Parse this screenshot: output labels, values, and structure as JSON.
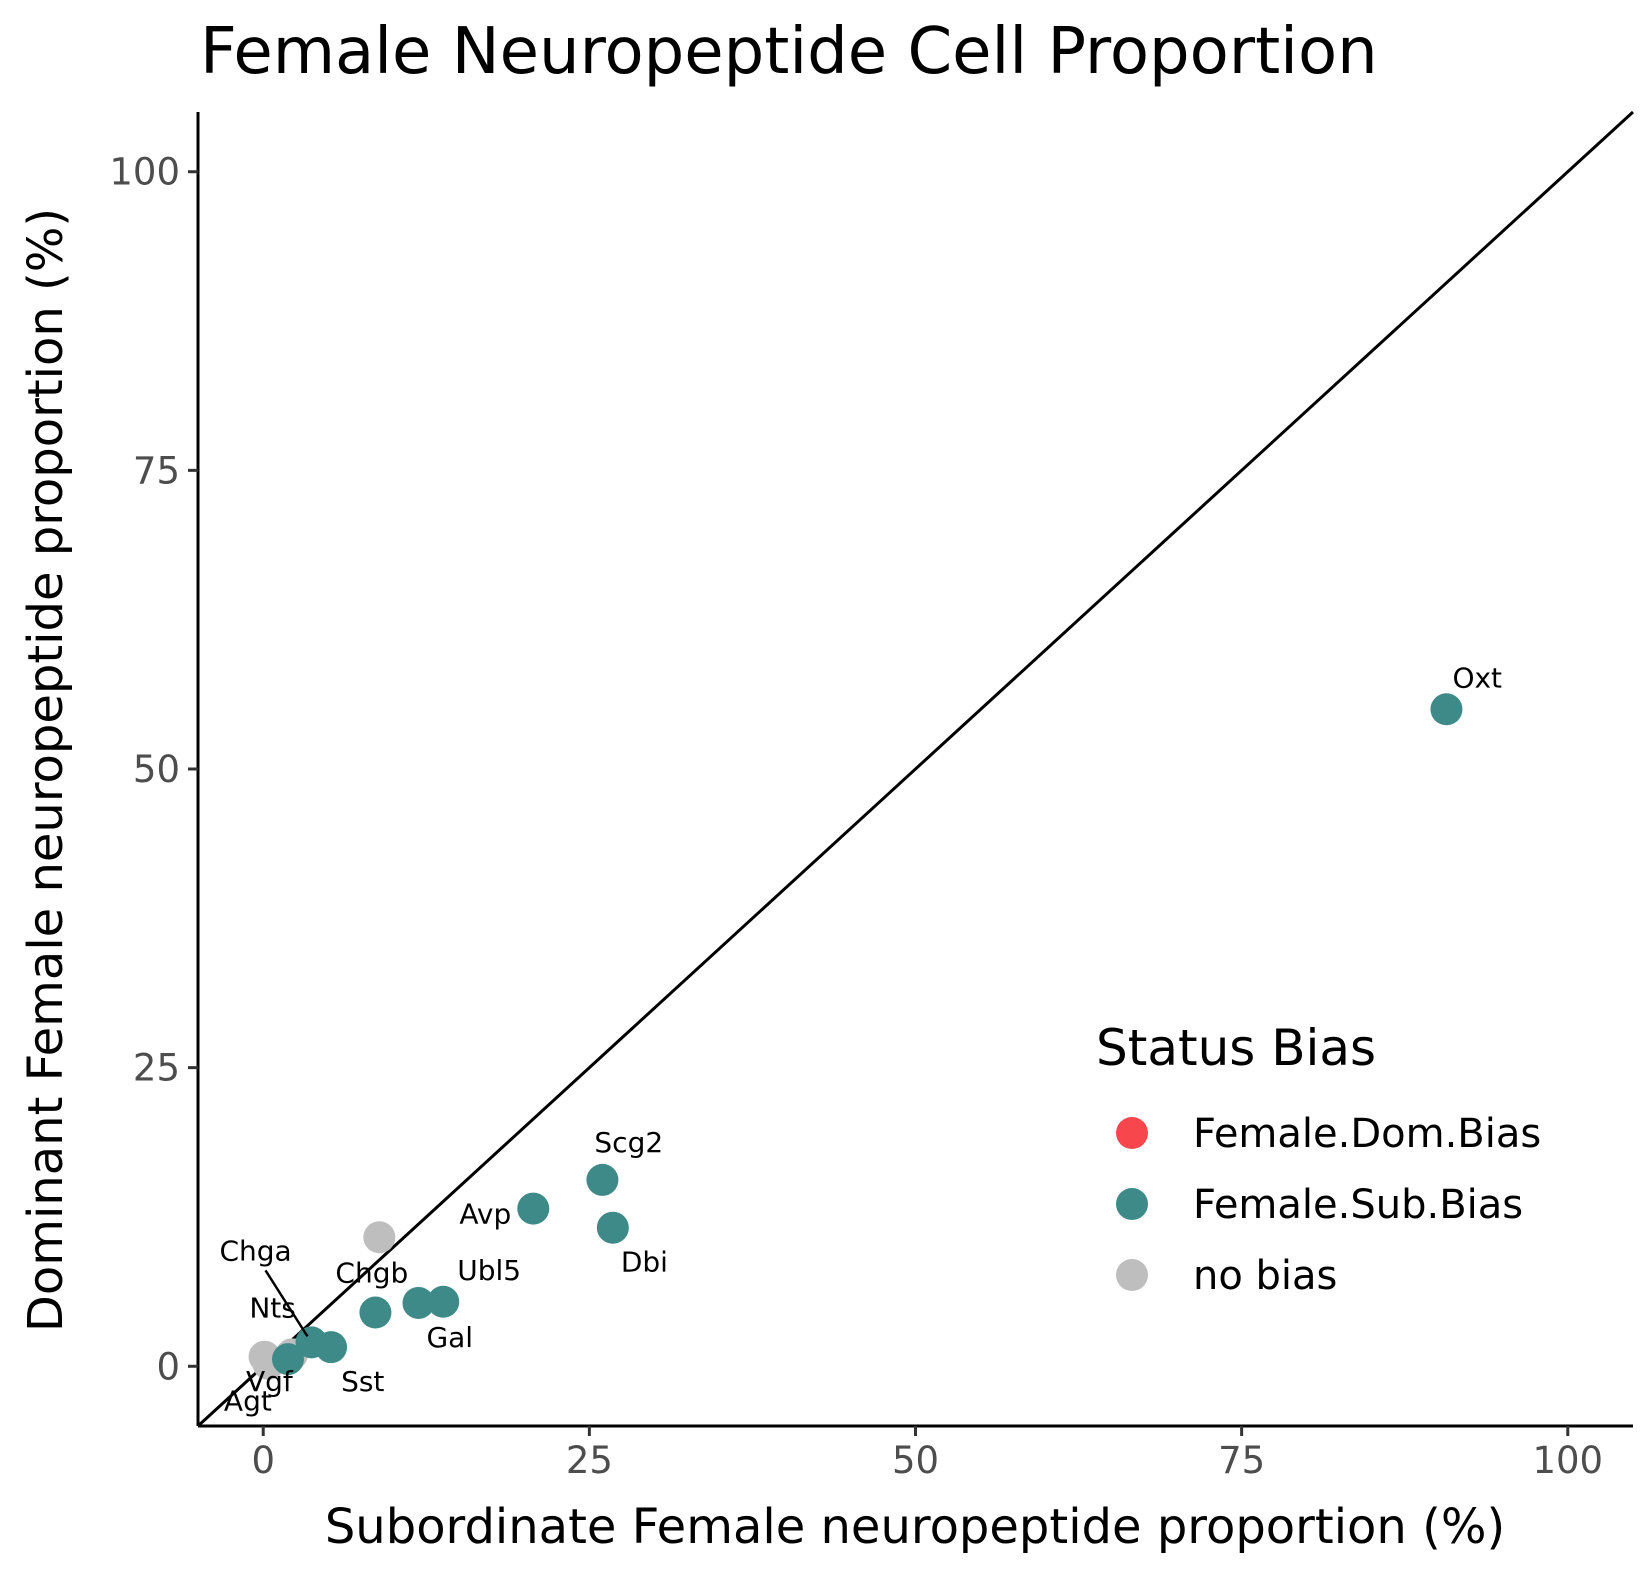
{
  "chart_data": {
    "type": "scatter",
    "title": "Female Neuropeptide Cell Proportion",
    "xlabel": "Subordinate Female neuropeptide proportion (%)",
    "ylabel": "Dominant Female neuropeptide proportion (%)",
    "xlim": [
      -5,
      105
    ],
    "ylim": [
      -5,
      105
    ],
    "xticks": [
      0,
      25,
      50,
      75,
      100
    ],
    "yticks": [
      0,
      25,
      50,
      75,
      100
    ],
    "grid": false,
    "reference_line": "y = x",
    "legend": {
      "title": "Status Bias",
      "placement": "bottom-right",
      "entries": [
        {
          "label": "Female.Dom.Bias",
          "color": "#f8464d"
        },
        {
          "label": "Female.Sub.Bias",
          "color": "#3e8a88"
        },
        {
          "label": "no bias",
          "color": "#bebebe"
        }
      ]
    },
    "points": [
      {
        "label": "Oxt",
        "x": 90.7,
        "y": 55.0,
        "group": "Female.Sub.Bias"
      },
      {
        "label": "Scg2",
        "x": 26.0,
        "y": 15.6,
        "group": "Female.Sub.Bias"
      },
      {
        "label": "Dbi",
        "x": 26.8,
        "y": 11.6,
        "group": "Female.Sub.Bias"
      },
      {
        "label": "Avp",
        "x": 20.7,
        "y": 13.2,
        "group": "Female.Sub.Bias"
      },
      {
        "label": "Ubl5",
        "x": 13.8,
        "y": 5.4,
        "group": "Female.Sub.Bias"
      },
      {
        "label": "Gal",
        "x": 11.9,
        "y": 5.3,
        "group": "Female.Sub.Bias"
      },
      {
        "label": "Chgb",
        "x": 8.6,
        "y": 4.5,
        "group": "Female.Sub.Bias"
      },
      {
        "label": "Sst",
        "x": 5.2,
        "y": 1.6,
        "group": "Female.Sub.Bias"
      },
      {
        "label": "Chga",
        "x": 3.7,
        "y": 2.0,
        "group": "Female.Sub.Bias"
      },
      {
        "label": "Vgf",
        "x": 1.9,
        "y": 0.6,
        "group": "Female.Sub.Bias"
      },
      {
        "label": "Nts",
        "x": 8.9,
        "y": 10.8,
        "group": "no bias"
      },
      {
        "label": "Agt",
        "x": 2.2,
        "y": 1.0,
        "group": "no bias"
      },
      {
        "label": "",
        "x": 0.1,
        "y": 0.8,
        "group": "no bias"
      },
      {
        "label": "",
        "x": 0.4,
        "y": 0.2,
        "group": "no bias"
      }
    ]
  }
}
